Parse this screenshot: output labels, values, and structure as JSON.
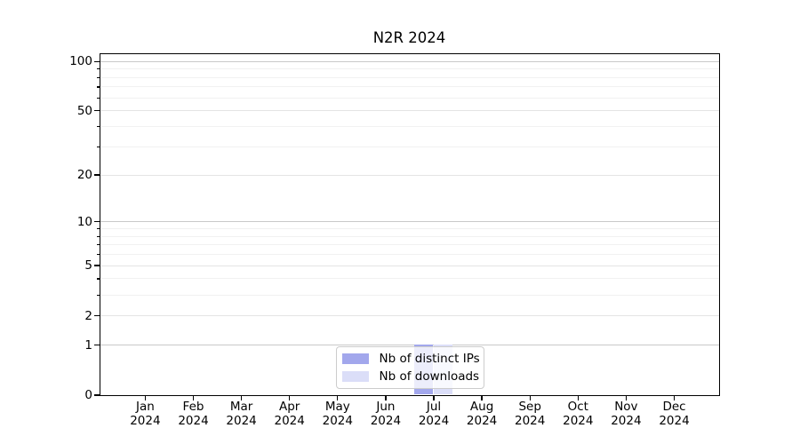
{
  "figure": {
    "background": "#ffffff",
    "axis_color": "#000000"
  },
  "chart_data": {
    "type": "bar",
    "title": "N2R 2024",
    "xlabel": "",
    "ylabel": "",
    "categories": [
      "Jan 2024",
      "Feb 2024",
      "Mar 2024",
      "Apr 2024",
      "May 2024",
      "Jun 2024",
      "Jul 2024",
      "Aug 2024",
      "Sep 2024",
      "Oct 2024",
      "Nov 2024",
      "Dec 2024"
    ],
    "series": [
      {
        "name": "Nb of distinct IPs",
        "color": "#a2a7ec",
        "values": [
          0,
          0,
          0,
          0,
          0,
          0,
          1,
          0,
          0,
          0,
          0,
          0
        ]
      },
      {
        "name": "Nb of downloads",
        "color": "#dbdef8",
        "values": [
          0,
          0,
          0,
          0,
          0,
          0,
          1,
          0,
          0,
          0,
          0,
          0
        ]
      }
    ],
    "yscale": "log1p",
    "yticks": [
      0,
      1,
      2,
      5,
      10,
      20,
      50,
      100
    ],
    "yticks_minor": [
      3,
      4,
      6,
      7,
      8,
      9,
      30,
      40,
      60,
      70,
      80,
      90
    ],
    "ylim": [
      0,
      113
    ],
    "grid": true,
    "legend": {
      "position": "lower-center",
      "background": "rgba(255,255,255,0.8)",
      "entries": [
        "Nb of distinct IPs",
        "Nb of downloads"
      ]
    },
    "grid_colors": {
      "decade": "#c9c9c9",
      "labeled": "#e4e4e4",
      "minor": "#f1f1f1"
    }
  }
}
